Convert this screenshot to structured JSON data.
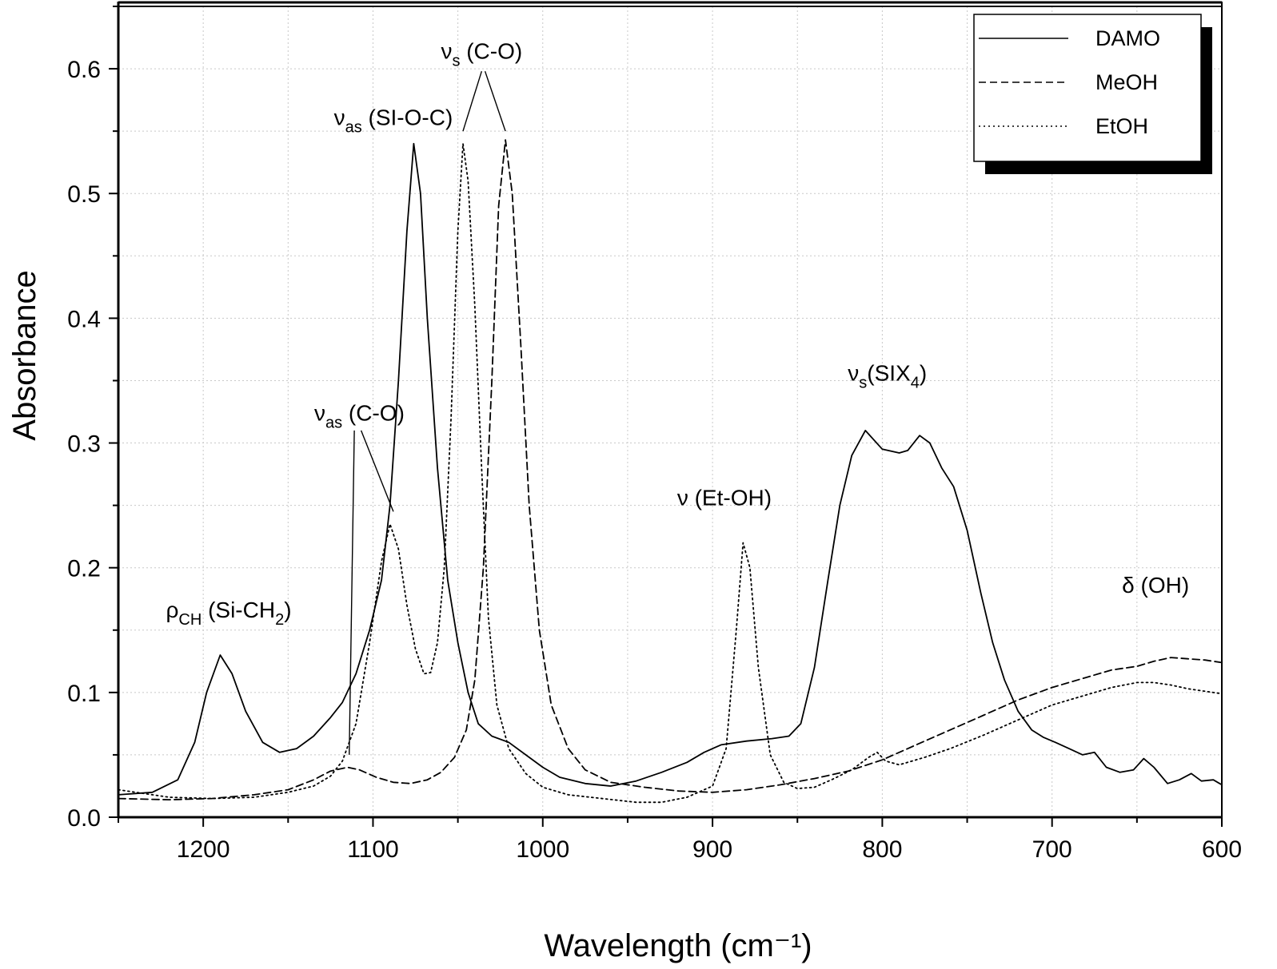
{
  "chart_data": {
    "type": "line",
    "xlabel": "Wavelength (cm⁻¹)",
    "ylabel": "Absorbance",
    "xlim": [
      1250,
      600
    ],
    "ylim": [
      0.0,
      0.65
    ],
    "x_reversed": true,
    "grid": true,
    "legend_position": "top-right",
    "x_ticks": [
      1200,
      1100,
      1000,
      900,
      800,
      700,
      600
    ],
    "y_ticks": [
      0.0,
      0.1,
      0.2,
      0.3,
      0.4,
      0.5,
      0.6
    ],
    "y_tick_labels": [
      "0.0",
      "0.1",
      "0.2",
      "0.3",
      "0.4",
      "0.5",
      "0.6"
    ],
    "series": [
      {
        "name": "DAMO",
        "style": "solid",
        "points": [
          [
            1250,
            0.018
          ],
          [
            1230,
            0.02
          ],
          [
            1215,
            0.03
          ],
          [
            1205,
            0.06
          ],
          [
            1198,
            0.1
          ],
          [
            1190,
            0.13
          ],
          [
            1183,
            0.115
          ],
          [
            1175,
            0.085
          ],
          [
            1165,
            0.06
          ],
          [
            1155,
            0.052
          ],
          [
            1145,
            0.055
          ],
          [
            1135,
            0.065
          ],
          [
            1125,
            0.08
          ],
          [
            1118,
            0.092
          ],
          [
            1110,
            0.115
          ],
          [
            1102,
            0.15
          ],
          [
            1095,
            0.19
          ],
          [
            1090,
            0.25
          ],
          [
            1085,
            0.35
          ],
          [
            1080,
            0.47
          ],
          [
            1076,
            0.54
          ],
          [
            1072,
            0.5
          ],
          [
            1068,
            0.4
          ],
          [
            1062,
            0.28
          ],
          [
            1056,
            0.19
          ],
          [
            1050,
            0.14
          ],
          [
            1044,
            0.1
          ],
          [
            1038,
            0.075
          ],
          [
            1030,
            0.065
          ],
          [
            1020,
            0.06
          ],
          [
            1010,
            0.05
          ],
          [
            1000,
            0.04
          ],
          [
            990,
            0.032
          ],
          [
            975,
            0.027
          ],
          [
            960,
            0.025
          ],
          [
            945,
            0.029
          ],
          [
            930,
            0.036
          ],
          [
            915,
            0.044
          ],
          [
            905,
            0.052
          ],
          [
            895,
            0.058
          ],
          [
            880,
            0.061
          ],
          [
            865,
            0.063
          ],
          [
            855,
            0.065
          ],
          [
            848,
            0.075
          ],
          [
            840,
            0.12
          ],
          [
            832,
            0.19
          ],
          [
            825,
            0.25
          ],
          [
            818,
            0.29
          ],
          [
            810,
            0.31
          ],
          [
            800,
            0.295
          ],
          [
            790,
            0.292
          ],
          [
            785,
            0.294
          ],
          [
            778,
            0.306
          ],
          [
            772,
            0.3
          ],
          [
            765,
            0.28
          ],
          [
            758,
            0.265
          ],
          [
            750,
            0.23
          ],
          [
            742,
            0.18
          ],
          [
            735,
            0.14
          ],
          [
            728,
            0.11
          ],
          [
            720,
            0.085
          ],
          [
            712,
            0.07
          ],
          [
            705,
            0.064
          ],
          [
            698,
            0.06
          ],
          [
            690,
            0.055
          ],
          [
            682,
            0.05
          ],
          [
            675,
            0.052
          ],
          [
            668,
            0.04
          ],
          [
            660,
            0.036
          ],
          [
            652,
            0.038
          ],
          [
            646,
            0.047
          ],
          [
            640,
            0.04
          ],
          [
            632,
            0.027
          ],
          [
            625,
            0.03
          ],
          [
            618,
            0.035
          ],
          [
            612,
            0.029
          ],
          [
            605,
            0.03
          ],
          [
            600,
            0.026
          ]
        ]
      },
      {
        "name": "MeOH",
        "style": "dashed",
        "points": [
          [
            1250,
            0.015
          ],
          [
            1220,
            0.014
          ],
          [
            1195,
            0.015
          ],
          [
            1170,
            0.018
          ],
          [
            1150,
            0.022
          ],
          [
            1135,
            0.03
          ],
          [
            1125,
            0.037
          ],
          [
            1115,
            0.04
          ],
          [
            1108,
            0.038
          ],
          [
            1098,
            0.032
          ],
          [
            1088,
            0.028
          ],
          [
            1078,
            0.027
          ],
          [
            1068,
            0.03
          ],
          [
            1060,
            0.036
          ],
          [
            1052,
            0.048
          ],
          [
            1045,
            0.07
          ],
          [
            1040,
            0.11
          ],
          [
            1035,
            0.2
          ],
          [
            1030,
            0.35
          ],
          [
            1026,
            0.49
          ],
          [
            1022,
            0.543
          ],
          [
            1018,
            0.5
          ],
          [
            1013,
            0.38
          ],
          [
            1008,
            0.25
          ],
          [
            1002,
            0.15
          ],
          [
            995,
            0.09
          ],
          [
            985,
            0.055
          ],
          [
            975,
            0.038
          ],
          [
            960,
            0.028
          ],
          [
            940,
            0.024
          ],
          [
            920,
            0.021
          ],
          [
            900,
            0.02
          ],
          [
            880,
            0.022
          ],
          [
            860,
            0.026
          ],
          [
            840,
            0.031
          ],
          [
            820,
            0.037
          ],
          [
            800,
            0.046
          ],
          [
            780,
            0.058
          ],
          [
            760,
            0.07
          ],
          [
            740,
            0.082
          ],
          [
            720,
            0.094
          ],
          [
            700,
            0.104
          ],
          [
            680,
            0.112
          ],
          [
            665,
            0.118
          ],
          [
            650,
            0.121
          ],
          [
            640,
            0.125
          ],
          [
            630,
            0.128
          ],
          [
            620,
            0.127
          ],
          [
            610,
            0.126
          ],
          [
            600,
            0.124
          ]
        ]
      },
      {
        "name": "EtOH",
        "style": "dotted",
        "points": [
          [
            1250,
            0.022
          ],
          [
            1220,
            0.016
          ],
          [
            1195,
            0.015
          ],
          [
            1170,
            0.016
          ],
          [
            1150,
            0.02
          ],
          [
            1135,
            0.025
          ],
          [
            1125,
            0.033
          ],
          [
            1118,
            0.045
          ],
          [
            1110,
            0.075
          ],
          [
            1102,
            0.14
          ],
          [
            1095,
            0.205
          ],
          [
            1090,
            0.235
          ],
          [
            1085,
            0.215
          ],
          [
            1080,
            0.17
          ],
          [
            1075,
            0.135
          ],
          [
            1070,
            0.115
          ],
          [
            1066,
            0.116
          ],
          [
            1062,
            0.14
          ],
          [
            1058,
            0.2
          ],
          [
            1054,
            0.32
          ],
          [
            1050,
            0.47
          ],
          [
            1047,
            0.54
          ],
          [
            1044,
            0.51
          ],
          [
            1040,
            0.41
          ],
          [
            1036,
            0.28
          ],
          [
            1032,
            0.16
          ],
          [
            1027,
            0.09
          ],
          [
            1020,
            0.055
          ],
          [
            1010,
            0.035
          ],
          [
            1000,
            0.024
          ],
          [
            985,
            0.018
          ],
          [
            965,
            0.015
          ],
          [
            945,
            0.012
          ],
          [
            930,
            0.012
          ],
          [
            915,
            0.016
          ],
          [
            900,
            0.025
          ],
          [
            892,
            0.055
          ],
          [
            886,
            0.15
          ],
          [
            882,
            0.22
          ],
          [
            878,
            0.2
          ],
          [
            873,
            0.12
          ],
          [
            866,
            0.05
          ],
          [
            858,
            0.028
          ],
          [
            850,
            0.023
          ],
          [
            840,
            0.024
          ],
          [
            830,
            0.03
          ],
          [
            818,
            0.038
          ],
          [
            808,
            0.048
          ],
          [
            803,
            0.052
          ],
          [
            798,
            0.045
          ],
          [
            790,
            0.042
          ],
          [
            775,
            0.048
          ],
          [
            760,
            0.055
          ],
          [
            740,
            0.066
          ],
          [
            720,
            0.078
          ],
          [
            700,
            0.09
          ],
          [
            680,
            0.098
          ],
          [
            665,
            0.104
          ],
          [
            650,
            0.108
          ],
          [
            640,
            0.108
          ],
          [
            630,
            0.106
          ],
          [
            620,
            0.103
          ],
          [
            610,
            0.101
          ],
          [
            600,
            0.099
          ]
        ]
      }
    ],
    "annotations": [
      {
        "id": "rho-ch",
        "main": "ρ",
        "sub": "CH",
        "rest": " (Si-CH",
        "sub2": "2",
        "rest2": ")",
        "x": 1185,
        "y": 0.16
      },
      {
        "id": "nu-as-co",
        "main": "ν",
        "sub": "as",
        "rest": " (C-O)",
        "sub2": "",
        "rest2": "",
        "x": 1108,
        "y": 0.318
      },
      {
        "id": "nu-as-sioc",
        "main": "ν",
        "sub": "as",
        "rest": " (SI-O-C)",
        "sub2": "",
        "rest2": "",
        "x": 1088,
        "y": 0.555
      },
      {
        "id": "nu-s-co",
        "main": "ν",
        "sub": "s",
        "rest": " (C-O)",
        "sub2": "",
        "rest2": "",
        "x": 1036,
        "y": 0.608
      },
      {
        "id": "nu-etoh",
        "main": "ν",
        "sub": "",
        "rest": " (Et-OH)",
        "sub2": "",
        "rest2": "",
        "x": 893,
        "y": 0.25
      },
      {
        "id": "nu-s-six4",
        "main": "ν",
        "sub": "s",
        "rest": "(SIX",
        "sub2": "4",
        "rest2": ")",
        "x": 797,
        "y": 0.35
      },
      {
        "id": "delta-oh",
        "main": "δ",
        "sub": "",
        "rest": " (OH)",
        "sub2": "",
        "rest2": "",
        "x": 639,
        "y": 0.18
      }
    ],
    "leader_lines": [
      [
        [
          1111,
          0.31
        ],
        [
          1114,
          0.05
        ]
      ],
      [
        [
          1107,
          0.31
        ],
        [
          1088,
          0.245
        ]
      ],
      [
        [
          1036,
          0.598
        ],
        [
          1047,
          0.55
        ]
      ],
      [
        [
          1034,
          0.598
        ],
        [
          1022,
          0.55
        ]
      ]
    ]
  }
}
